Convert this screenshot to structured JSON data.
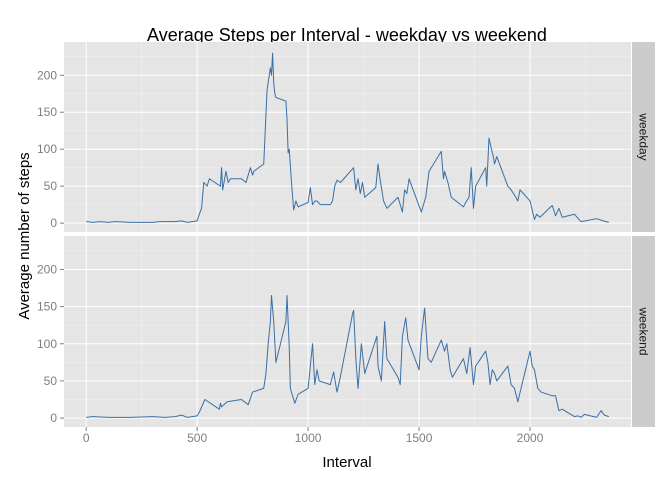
{
  "chart_data": {
    "type": "line",
    "title": "Average Steps per Interval - weekday vs weekend",
    "xlabel": "Interval",
    "ylabel": "Average number of steps",
    "xlim": [
      -100,
      2455
    ],
    "ylim": [
      -12,
      245
    ],
    "x_ticks": [
      0,
      500,
      1000,
      1500,
      2000
    ],
    "y_ticks": [
      0,
      50,
      100,
      150,
      200
    ],
    "grid": true,
    "facet": "rows",
    "line_color": "#3a6fa6",
    "panel_background": "#e5e5e5",
    "strip_background": "#cccccc",
    "series": [
      {
        "name": "weekday",
        "x": [
          0,
          30,
          60,
          100,
          130,
          200,
          300,
          330,
          400,
          430,
          455,
          500,
          505,
          520,
          530,
          545,
          555,
          605,
          610,
          615,
          630,
          640,
          650,
          700,
          720,
          740,
          750,
          755,
          800,
          815,
          830,
          835,
          840,
          845,
          850,
          855,
          900,
          905,
          910,
          915,
          925,
          935,
          945,
          955,
          1000,
          1010,
          1020,
          1030,
          1040,
          1055,
          1100,
          1110,
          1120,
          1130,
          1145,
          1155,
          1205,
          1215,
          1225,
          1235,
          1245,
          1255,
          1305,
          1315,
          1325,
          1340,
          1355,
          1405,
          1415,
          1425,
          1435,
          1445,
          1455,
          1510,
          1530,
          1545,
          1600,
          1610,
          1615,
          1630,
          1645,
          1700,
          1710,
          1725,
          1735,
          1745,
          1755,
          1800,
          1805,
          1815,
          1830,
          1835,
          1840,
          1850,
          1900,
          1915,
          1930,
          1945,
          1955,
          2000,
          2020,
          2030,
          2045,
          2100,
          2115,
          2130,
          2145,
          2200,
          2230,
          2300,
          2330,
          2355
        ],
        "values": [
          2,
          1,
          2,
          1,
          2,
          1,
          1,
          2,
          2,
          3,
          1,
          3,
          8,
          20,
          55,
          50,
          60,
          50,
          75,
          45,
          70,
          55,
          60,
          60,
          55,
          75,
          65,
          70,
          80,
          180,
          210,
          200,
          230,
          190,
          175,
          170,
          165,
          140,
          95,
          100,
          55,
          18,
          30,
          22,
          28,
          48,
          25,
          30,
          30,
          25,
          25,
          30,
          50,
          58,
          55,
          58,
          75,
          45,
          60,
          40,
          55,
          35,
          48,
          80,
          58,
          30,
          20,
          35,
          25,
          15,
          45,
          40,
          60,
          15,
          35,
          70,
          97,
          60,
          70,
          55,
          35,
          22,
          28,
          35,
          75,
          20,
          50,
          75,
          50,
          115,
          95,
          90,
          80,
          90,
          50,
          45,
          38,
          30,
          45,
          30,
          5,
          12,
          8,
          24,
          10,
          20,
          8,
          12,
          2,
          6,
          3,
          1
        ]
      },
      {
        "name": "weekend",
        "x": [
          0,
          30,
          100,
          200,
          300,
          355,
          400,
          430,
          455,
          500,
          510,
          535,
          600,
          605,
          610,
          635,
          700,
          730,
          750,
          800,
          810,
          820,
          830,
          835,
          845,
          855,
          900,
          905,
          915,
          920,
          940,
          955,
          1000,
          1010,
          1020,
          1030,
          1040,
          1050,
          1100,
          1115,
          1130,
          1145,
          1200,
          1205,
          1215,
          1225,
          1240,
          1255,
          1310,
          1315,
          1330,
          1345,
          1355,
          1405,
          1415,
          1425,
          1440,
          1450,
          1500,
          1510,
          1525,
          1540,
          1555,
          1600,
          1615,
          1625,
          1640,
          1650,
          1700,
          1715,
          1730,
          1745,
          1755,
          1800,
          1810,
          1820,
          1830,
          1840,
          1850,
          1900,
          1915,
          1930,
          1945,
          2000,
          2010,
          2020,
          2035,
          2050,
          2100,
          2115,
          2130,
          2145,
          2200,
          2215,
          2230,
          2245,
          2300,
          2320,
          2335,
          2355
        ],
        "values": [
          1,
          2,
          1,
          1,
          2,
          1,
          2,
          4,
          1,
          3,
          8,
          25,
          12,
          20,
          15,
          22,
          25,
          18,
          35,
          40,
          60,
          100,
          130,
          165,
          130,
          75,
          130,
          165,
          95,
          40,
          20,
          32,
          40,
          70,
          100,
          45,
          65,
          50,
          45,
          62,
          35,
          55,
          140,
          145,
          80,
          40,
          100,
          60,
          110,
          70,
          50,
          130,
          80,
          55,
          45,
          110,
          135,
          105,
          65,
          110,
          148,
          80,
          75,
          105,
          90,
          100,
          65,
          55,
          80,
          60,
          95,
          45,
          70,
          90,
          75,
          45,
          65,
          60,
          50,
          70,
          45,
          40,
          22,
          90,
          70,
          65,
          40,
          35,
          30,
          30,
          10,
          12,
          2,
          3,
          1,
          5,
          1,
          10,
          4,
          2
        ]
      }
    ]
  }
}
